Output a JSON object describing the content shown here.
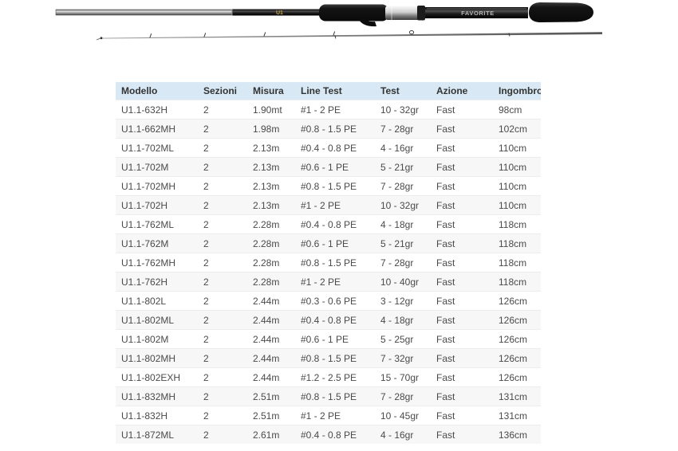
{
  "product_image": {
    "description": "two-piece spinning rod, butt section above, tip section below",
    "brand_text": "FAVORITE",
    "model_badge": "U1",
    "colors": {
      "badge_text": "#bfa04a",
      "brand_text": "#b5b5b5",
      "grip": "#1a1a1a",
      "blank_silver": "#b9b9b9"
    }
  },
  "table": {
    "style": {
      "header_bg": "#d8e9f5",
      "header_text": "#333333",
      "row_text": "#4a4a4a",
      "stripe_bg": "#f7f7f7",
      "border": "#ededed"
    },
    "columns": [
      {
        "key": "modello",
        "label": "Modello"
      },
      {
        "key": "sezioni",
        "label": "Sezioni"
      },
      {
        "key": "misura",
        "label": "Misura"
      },
      {
        "key": "line_test",
        "label": "Line Test"
      },
      {
        "key": "test",
        "label": "Test"
      },
      {
        "key": "azione",
        "label": "Azione"
      },
      {
        "key": "ingombro",
        "label": "Ingombro"
      }
    ],
    "rows": [
      {
        "modello": "U1.1-632H",
        "sezioni": "2",
        "misura": "1.90mt",
        "line_test": "#1 - 2 PE",
        "test": "10 - 32gr",
        "azione": "Fast",
        "ingombro": "98cm"
      },
      {
        "modello": "U1.1-662MH",
        "sezioni": "2",
        "misura": "1.98m",
        "line_test": "#0.8 - 1.5 PE",
        "test": "7 - 28gr",
        "azione": "Fast",
        "ingombro": "102cm"
      },
      {
        "modello": "U1.1-702ML",
        "sezioni": "2",
        "misura": "2.13m",
        "line_test": "#0.4 - 0.8 PE",
        "test": "4 - 16gr",
        "azione": "Fast",
        "ingombro": "110cm"
      },
      {
        "modello": "U1.1-702M",
        "sezioni": "2",
        "misura": "2.13m",
        "line_test": "#0.6 - 1 PE",
        "test": "5 - 21gr",
        "azione": "Fast",
        "ingombro": "110cm"
      },
      {
        "modello": "U1.1-702MH",
        "sezioni": "2",
        "misura": "2.13m",
        "line_test": "#0.8 - 1.5 PE",
        "test": "7 - 28gr",
        "azione": "Fast",
        "ingombro": "110cm"
      },
      {
        "modello": "U1.1-702H",
        "sezioni": "2",
        "misura": "2.13m",
        "line_test": "#1 - 2 PE",
        "test": "10 - 32gr",
        "azione": "Fast",
        "ingombro": "110cm"
      },
      {
        "modello": "U1.1-762ML",
        "sezioni": "2",
        "misura": "2.28m",
        "line_test": "#0.4 - 0.8 PE",
        "test": "4 - 18gr",
        "azione": "Fast",
        "ingombro": "118cm"
      },
      {
        "modello": "U1.1-762M",
        "sezioni": "2",
        "misura": "2.28m",
        "line_test": "#0.6 - 1 PE",
        "test": "5 - 21gr",
        "azione": "Fast",
        "ingombro": "118cm"
      },
      {
        "modello": "U1.1-762MH",
        "sezioni": "2",
        "misura": "2.28m",
        "line_test": "#0.8 - 1.5 PE",
        "test": "7 - 28gr",
        "azione": "Fast",
        "ingombro": "118cm"
      },
      {
        "modello": "U1.1-762H",
        "sezioni": "2",
        "misura": "2.28m",
        "line_test": "#1 - 2 PE",
        "test": "10 - 40gr",
        "azione": "Fast",
        "ingombro": "118cm"
      },
      {
        "modello": "U1.1-802L",
        "sezioni": "2",
        "misura": "2.44m",
        "line_test": "#0.3 - 0.6 PE",
        "test": "3 - 12gr",
        "azione": "Fast",
        "ingombro": "126cm"
      },
      {
        "modello": "U1.1-802ML",
        "sezioni": "2",
        "misura": "2.44m",
        "line_test": "#0.4 - 0.8 PE",
        "test": "4 - 18gr",
        "azione": "Fast",
        "ingombro": "126cm"
      },
      {
        "modello": "U1.1-802M",
        "sezioni": "2",
        "misura": "2.44m",
        "line_test": "#0.6 - 1 PE",
        "test": "5 - 25gr",
        "azione": "Fast",
        "ingombro": "126cm"
      },
      {
        "modello": "U1.1-802MH",
        "sezioni": "2",
        "misura": "2.44m",
        "line_test": "#0.8 - 1.5 PE",
        "test": "7 - 32gr",
        "azione": "Fast",
        "ingombro": "126cm"
      },
      {
        "modello": "U1.1-802EXH",
        "sezioni": "2",
        "misura": "2.44m",
        "line_test": "#1.2 - 2.5 PE",
        "test": "15 - 70gr",
        "azione": "Fast",
        "ingombro": "126cm"
      },
      {
        "modello": "U1.1-832MH",
        "sezioni": "2",
        "misura": "2.51m",
        "line_test": "#0.8 - 1.5 PE",
        "test": "7 - 28gr",
        "azione": "Fast",
        "ingombro": "131cm"
      },
      {
        "modello": "U1.1-832H",
        "sezioni": "2",
        "misura": "2.51m",
        "line_test": "#1 - 2 PE",
        "test": "10 - 45gr",
        "azione": "Fast",
        "ingombro": "131cm"
      },
      {
        "modello": "U1.1-872ML",
        "sezioni": "2",
        "misura": "2.61m",
        "line_test": "#0.4 - 0.8 PE",
        "test": "4 - 16gr",
        "azione": "Fast",
        "ingombro": "136cm"
      }
    ]
  }
}
